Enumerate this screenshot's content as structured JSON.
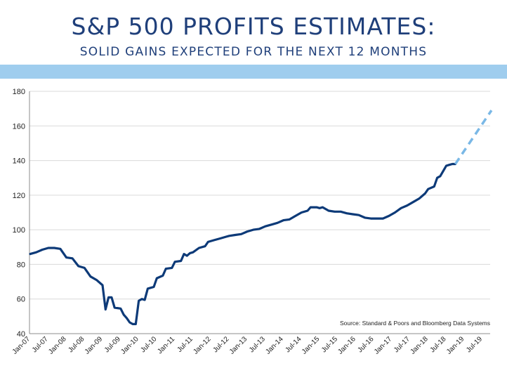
{
  "header": {
    "title": "S&P 500 PROFITS ESTIMATES:",
    "subtitle": "SOLID GAINS EXPECTED FOR THE NEXT 12 MONTHS"
  },
  "colors": {
    "title": "#1f3f7a",
    "band": "#9fcdee",
    "actual_line": "#0d3a78",
    "projection_line": "#7ab8e6",
    "grid": "#d9d9d9"
  },
  "chart_data": {
    "type": "line",
    "title": "",
    "xlabel": "",
    "ylabel": "",
    "ylim": [
      40,
      180
    ],
    "yticks": [
      "40",
      "60",
      "80",
      "100",
      "120",
      "140",
      "160",
      "180"
    ],
    "xticks": [
      "Jan-07",
      "Jul-07",
      "Jan-08",
      "Jul-08",
      "Jan-09",
      "Jul-09",
      "Jan-10",
      "Jul-10",
      "Jan-11",
      "Jul-11",
      "Jan-12",
      "Jul-12",
      "Jan-13",
      "Jul-13",
      "Jan-14",
      "Jul-14",
      "Jan-15",
      "Jul-15",
      "Jan-16",
      "Jul-16",
      "Jan-17",
      "Jul-17",
      "Jan-18",
      "Jul-18",
      "Jan-19",
      "Jul-19"
    ],
    "grid": true,
    "source": "Source:  Standard & Poors and Bloomberg Data Systems",
    "series": [
      {
        "style": "solid",
        "points": [
          [
            "2007-01",
            86
          ],
          [
            "2007-03",
            87
          ],
          [
            "2007-05",
            88.5
          ],
          [
            "2007-07",
            89.5
          ],
          [
            "2007-09",
            89.5
          ],
          [
            "2007-11",
            89
          ],
          [
            "2008-01",
            84
          ],
          [
            "2008-03",
            83.5
          ],
          [
            "2008-05",
            79
          ],
          [
            "2008-07",
            78
          ],
          [
            "2008-09",
            73
          ],
          [
            "2008-11",
            71
          ],
          [
            "2009-01",
            68
          ],
          [
            "2009-02",
            54
          ],
          [
            "2009-03",
            61
          ],
          [
            "2009-04",
            61
          ],
          [
            "2009-05",
            55
          ],
          [
            "2009-07",
            54.5
          ],
          [
            "2009-08",
            51
          ],
          [
            "2009-09",
            49
          ],
          [
            "2009-10",
            46.5
          ],
          [
            "2009-11",
            45.5
          ],
          [
            "2009-12",
            45.5
          ],
          [
            "2010-01",
            59
          ],
          [
            "2010-02",
            60
          ],
          [
            "2010-03",
            59.5
          ],
          [
            "2010-04",
            66
          ],
          [
            "2010-05",
            66.5
          ],
          [
            "2010-06",
            67
          ],
          [
            "2010-07",
            72
          ],
          [
            "2010-09",
            73.5
          ],
          [
            "2010-10",
            77.5
          ],
          [
            "2010-12",
            78
          ],
          [
            "2011-01",
            81.5
          ],
          [
            "2011-03",
            82
          ],
          [
            "2011-04",
            86
          ],
          [
            "2011-05",
            85
          ],
          [
            "2011-06",
            86.5
          ],
          [
            "2011-07",
            87
          ],
          [
            "2011-09",
            89.5
          ],
          [
            "2011-11",
            90.5
          ],
          [
            "2011-12",
            93
          ],
          [
            "2012-02",
            94
          ],
          [
            "2012-04",
            95
          ],
          [
            "2012-06",
            96
          ],
          [
            "2012-07",
            96.5
          ],
          [
            "2012-09",
            97
          ],
          [
            "2012-11",
            97.5
          ],
          [
            "2013-01",
            99
          ],
          [
            "2013-03",
            100
          ],
          [
            "2013-05",
            100.5
          ],
          [
            "2013-07",
            102
          ],
          [
            "2013-09",
            103
          ],
          [
            "2013-11",
            104
          ],
          [
            "2014-01",
            105.5
          ],
          [
            "2014-03",
            106
          ],
          [
            "2014-05",
            108
          ],
          [
            "2014-07",
            110
          ],
          [
            "2014-09",
            111
          ],
          [
            "2014-10",
            113
          ],
          [
            "2014-12",
            113
          ],
          [
            "2015-01",
            112.5
          ],
          [
            "2015-02",
            113
          ],
          [
            "2015-04",
            111
          ],
          [
            "2015-06",
            110.5
          ],
          [
            "2015-08",
            110.5
          ],
          [
            "2015-10",
            109.5
          ],
          [
            "2015-12",
            109
          ],
          [
            "2016-02",
            108.5
          ],
          [
            "2016-04",
            107
          ],
          [
            "2016-06",
            106.5
          ],
          [
            "2016-08",
            106.5
          ],
          [
            "2016-10",
            106.5
          ],
          [
            "2016-12",
            108
          ],
          [
            "2017-02",
            110
          ],
          [
            "2017-04",
            112.5
          ],
          [
            "2017-06",
            114
          ],
          [
            "2017-08",
            116
          ],
          [
            "2017-10",
            118
          ],
          [
            "2017-12",
            121
          ],
          [
            "2018-01",
            123.5
          ],
          [
            "2018-03",
            125
          ],
          [
            "2018-04",
            130
          ],
          [
            "2018-05",
            131
          ],
          [
            "2018-06",
            134
          ],
          [
            "2018-07",
            137
          ],
          [
            "2018-08",
            137.5
          ],
          [
            "2018-09",
            138
          ],
          [
            "2018-10",
            138
          ]
        ]
      },
      {
        "style": "dashed",
        "points": [
          [
            "2018-10",
            138
          ],
          [
            "2019-10",
            169
          ]
        ]
      }
    ]
  }
}
